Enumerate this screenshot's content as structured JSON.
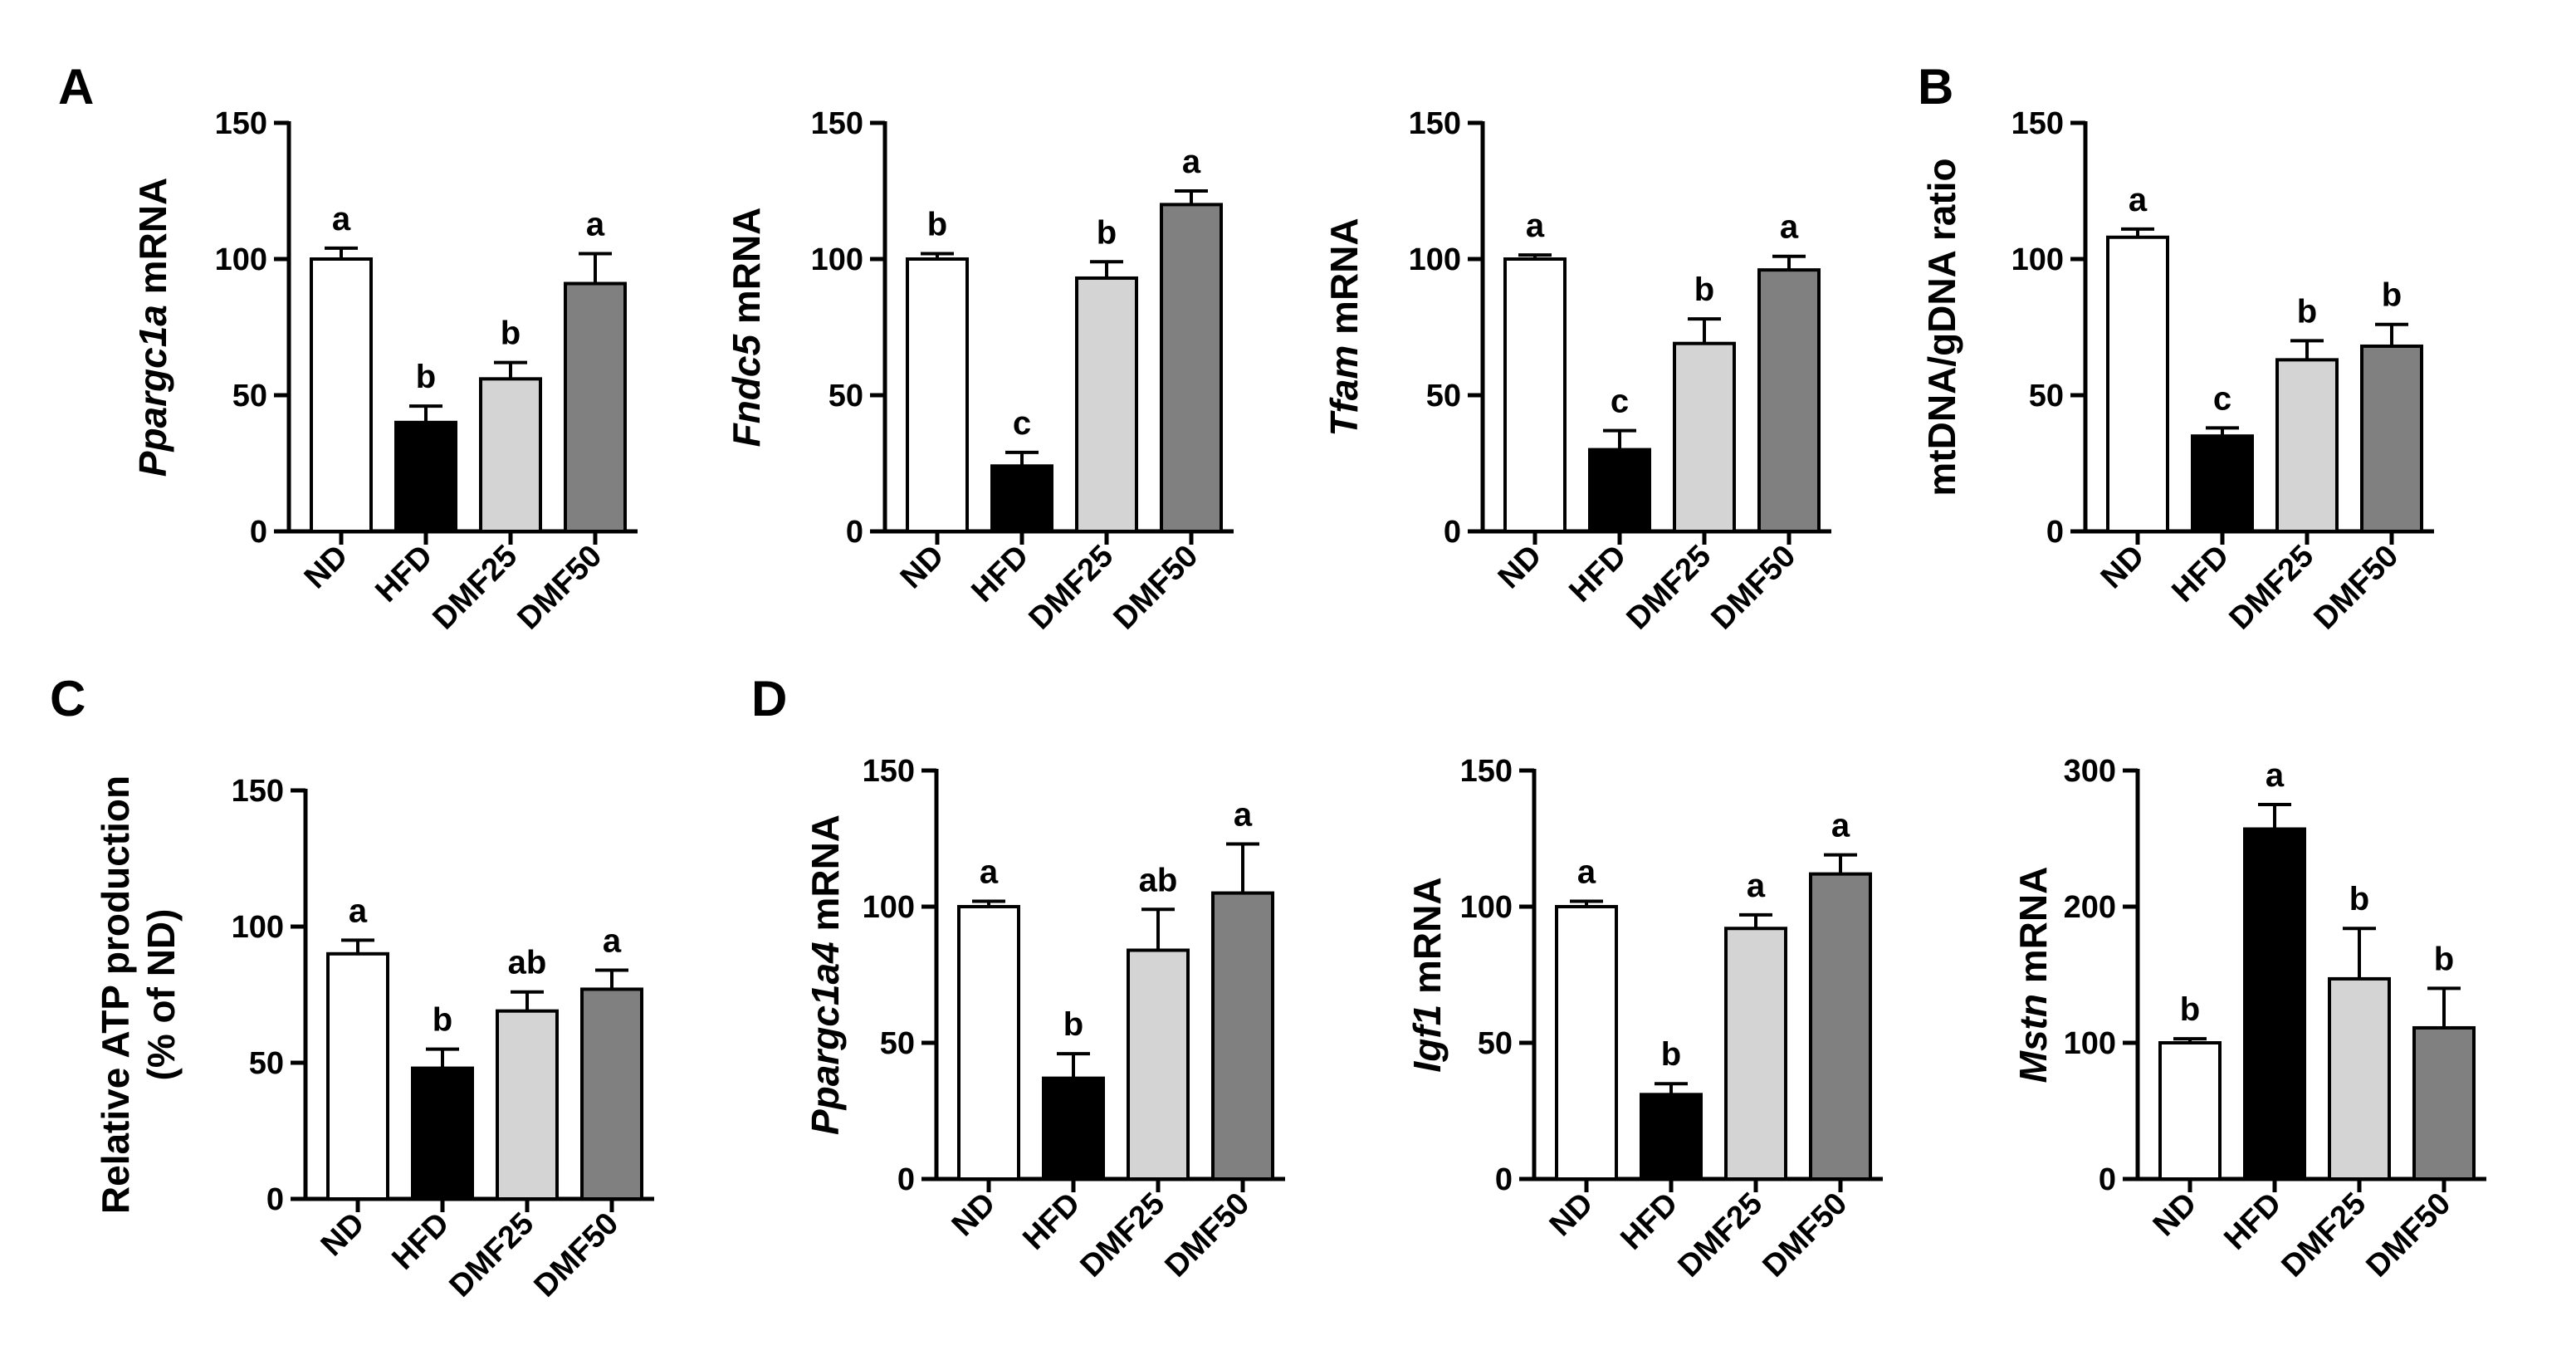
{
  "panel_letters": [
    "A",
    "B",
    "C",
    "D"
  ],
  "chart_data": [
    {
      "type": "bar",
      "panel": "A",
      "ylabel_parts": [
        {
          "text": "Ppargc1a",
          "italic": true
        },
        {
          "text": " mRNA",
          "italic": false
        }
      ],
      "categories": [
        "ND",
        "HFD",
        "DMF25",
        "DMF50"
      ],
      "values": [
        100,
        40,
        56,
        91
      ],
      "errors": [
        4,
        6,
        6,
        11
      ],
      "significance": [
        "a",
        "b",
        "b",
        "a"
      ],
      "ylim": [
        0,
        150
      ],
      "yticks": [
        0,
        50,
        100,
        150
      ],
      "bar_colors": [
        "#ffffff",
        "#000000",
        "#d4d4d4",
        "#808080"
      ]
    },
    {
      "type": "bar",
      "panel": "",
      "ylabel_parts": [
        {
          "text": "Fndc5",
          "italic": true
        },
        {
          "text": " mRNA",
          "italic": false
        }
      ],
      "categories": [
        "ND",
        "HFD",
        "DMF25",
        "DMF50"
      ],
      "values": [
        100,
        24,
        93,
        120
      ],
      "errors": [
        2,
        5,
        6,
        5
      ],
      "significance": [
        "b",
        "c",
        "b",
        "a"
      ],
      "ylim": [
        0,
        150
      ],
      "yticks": [
        0,
        50,
        100,
        150
      ],
      "bar_colors": [
        "#ffffff",
        "#000000",
        "#d4d4d4",
        "#808080"
      ]
    },
    {
      "type": "bar",
      "panel": "",
      "ylabel_parts": [
        {
          "text": "Tfam",
          "italic": true
        },
        {
          "text": " mRNA",
          "italic": false
        }
      ],
      "categories": [
        "ND",
        "HFD",
        "DMF25",
        "DMF50"
      ],
      "values": [
        100,
        30,
        69,
        96
      ],
      "errors": [
        1.5,
        7,
        9,
        5
      ],
      "significance": [
        "a",
        "c",
        "b",
        "a"
      ],
      "ylim": [
        0,
        150
      ],
      "yticks": [
        0,
        50,
        100,
        150
      ],
      "bar_colors": [
        "#ffffff",
        "#000000",
        "#d4d4d4",
        "#808080"
      ]
    },
    {
      "type": "bar",
      "panel": "B",
      "ylabel_parts": [
        {
          "text": "mtDNA/gDNA ratio",
          "italic": false
        }
      ],
      "categories": [
        "ND",
        "HFD",
        "DMF25",
        "DMF50"
      ],
      "values": [
        108,
        35,
        63,
        68
      ],
      "errors": [
        3,
        3,
        7,
        8
      ],
      "significance": [
        "a",
        "c",
        "b",
        "b"
      ],
      "ylim": [
        0,
        150
      ],
      "yticks": [
        0,
        50,
        100,
        150
      ],
      "bar_colors": [
        "#ffffff",
        "#000000",
        "#d4d4d4",
        "#808080"
      ]
    },
    {
      "type": "bar",
      "panel": "C",
      "ylabel_parts": [
        {
          "text": "Relative ATP production",
          "italic": false
        }
      ],
      "ylabel_line2": "(% of ND)",
      "categories": [
        "ND",
        "HFD",
        "DMF25",
        "DMF50"
      ],
      "values": [
        90,
        48,
        69,
        77
      ],
      "errors": [
        5,
        7,
        7,
        7
      ],
      "significance": [
        "a",
        "b",
        "ab",
        "a"
      ],
      "ylim": [
        0,
        150
      ],
      "yticks": [
        0,
        50,
        100,
        150
      ],
      "bar_colors": [
        "#ffffff",
        "#000000",
        "#d4d4d4",
        "#808080"
      ]
    },
    {
      "type": "bar",
      "panel": "D",
      "ylabel_parts": [
        {
          "text": "Ppargc1a4",
          "italic": true
        },
        {
          "text": "  mRNA",
          "italic": false
        }
      ],
      "categories": [
        "ND",
        "HFD",
        "DMF25",
        "DMF50"
      ],
      "values": [
        100,
        37,
        84,
        105
      ],
      "errors": [
        2,
        9,
        15,
        18
      ],
      "significance": [
        "a",
        "b",
        "ab",
        "a"
      ],
      "ylim": [
        0,
        150
      ],
      "yticks": [
        0,
        50,
        100,
        150
      ],
      "bar_colors": [
        "#ffffff",
        "#000000",
        "#d4d4d4",
        "#808080"
      ]
    },
    {
      "type": "bar",
      "panel": "",
      "ylabel_parts": [
        {
          "text": "Igf1",
          "italic": true
        },
        {
          "text": " mRNA",
          "italic": false
        }
      ],
      "categories": [
        "ND",
        "HFD",
        "DMF25",
        "DMF50"
      ],
      "values": [
        100,
        31,
        92,
        112
      ],
      "errors": [
        2,
        4,
        5,
        7
      ],
      "significance": [
        "a",
        "b",
        "a",
        "a"
      ],
      "ylim": [
        0,
        150
      ],
      "yticks": [
        0,
        50,
        100,
        150
      ],
      "bar_colors": [
        "#ffffff",
        "#000000",
        "#d4d4d4",
        "#808080"
      ]
    },
    {
      "type": "bar",
      "panel": "",
      "ylabel_parts": [
        {
          "text": "Mstn",
          "italic": true
        },
        {
          "text": " mRNA",
          "italic": false
        }
      ],
      "categories": [
        "ND",
        "HFD",
        "DMF25",
        "DMF50"
      ],
      "values": [
        100,
        257,
        147,
        111
      ],
      "errors": [
        3,
        18,
        37,
        29
      ],
      "significance": [
        "b",
        "a",
        "b",
        "b"
      ],
      "ylim": [
        0,
        300
      ],
      "yticks": [
        0,
        100,
        200,
        300
      ],
      "bar_colors": [
        "#ffffff",
        "#000000",
        "#d4d4d4",
        "#808080"
      ]
    }
  ]
}
